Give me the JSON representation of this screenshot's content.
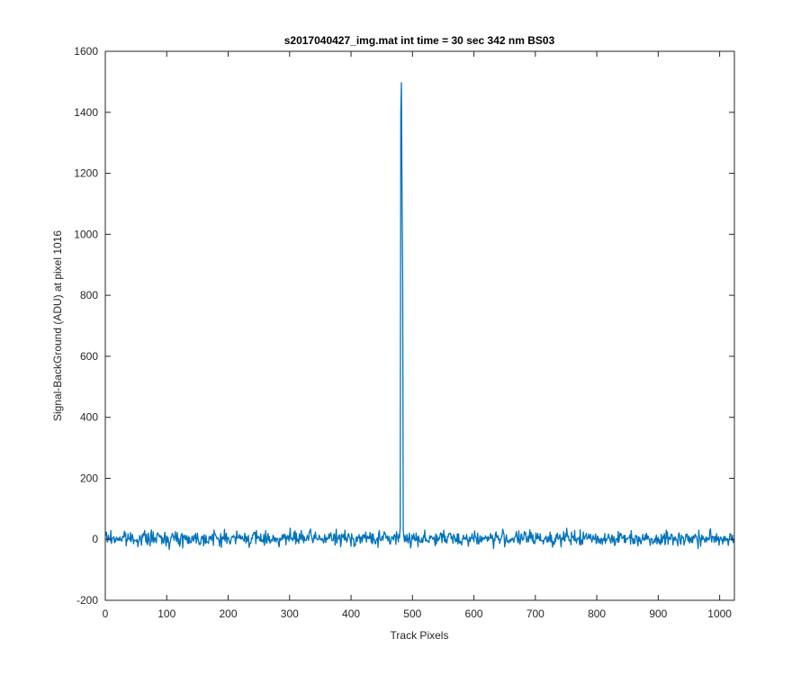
{
  "chart_data": {
    "type": "line",
    "title": "s2017040427_img.mat int time = 30 sec  342 nm BS03",
    "xlabel": "Track Pixels",
    "ylabel": "Signal-BackGround (ADU) at pixel 1016",
    "xlim": [
      0,
      1024
    ],
    "ylim": [
      -200,
      1600
    ],
    "xticks": [
      0,
      100,
      200,
      300,
      400,
      500,
      600,
      700,
      800,
      900,
      1000
    ],
    "yticks": [
      -200,
      0,
      200,
      400,
      600,
      800,
      1000,
      1200,
      1400,
      1600
    ],
    "grid": false,
    "box": true,
    "series": [
      {
        "color": "#0072BD",
        "noise_baseline": 3,
        "noise_amplitude": 12,
        "peak": {
          "x": [
            479,
            480,
            481,
            482,
            483,
            484,
            485,
            486
          ],
          "y": [
            5,
            40,
            1400,
            1497,
            1130,
            880,
            30,
            8
          ]
        }
      }
    ]
  }
}
